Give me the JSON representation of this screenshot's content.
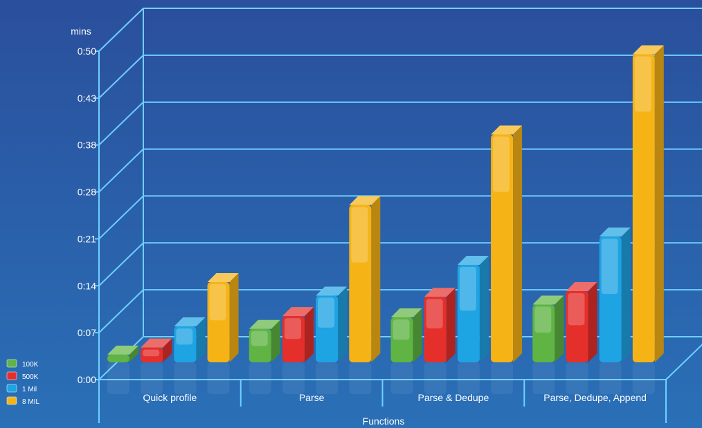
{
  "chart_data": {
    "type": "bar",
    "title": "",
    "ylabel": "mins",
    "xlabel": "Functions",
    "y_ticks": [
      "0:00",
      "0:07",
      "0:14",
      "0:21",
      "0:28",
      "0:38",
      "0:43",
      "0:50"
    ],
    "ylim": [
      0,
      50
    ],
    "categories": [
      "Quick profile",
      "Parse",
      "Parse & Dedupe",
      "Parse, Dedupe, Append"
    ],
    "series": [
      {
        "name": "100K",
        "color": "#5fb443",
        "values": [
          1.2,
          5.2,
          7.0,
          9.0
        ]
      },
      {
        "name": "500K",
        "color": "#e52f2b",
        "values": [
          2.3,
          7.2,
          10.2,
          11.1
        ]
      },
      {
        "name": "1 Mil",
        "color": "#1ea3e3",
        "values": [
          5.6,
          10.4,
          15.2,
          19.6
        ]
      },
      {
        "name": "8 MIL",
        "color": "#f5b316",
        "values": [
          12.5,
          24.5,
          35.5,
          48.0
        ]
      }
    ],
    "legend_position": "bottom-left",
    "grid": true
  },
  "colors": {
    "background": "#2557a3",
    "grid": "#6fd0ff"
  }
}
